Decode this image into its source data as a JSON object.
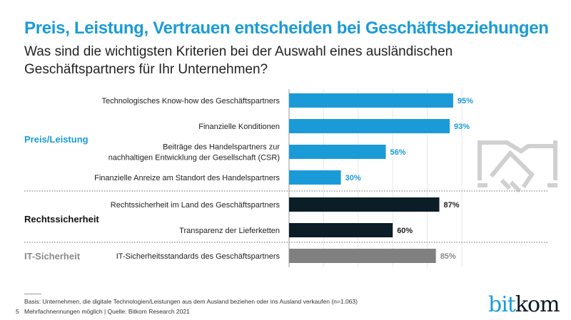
{
  "title": "Preis, Leistung, Vertrauen entscheiden bei Geschäftsbeziehungen",
  "subtitle": "Was sind die wichtigsten Kriterien bei der Auswahl eines ausländischen Geschäftspartners für Ihr Unternehmen?",
  "chart_data": {
    "type": "bar",
    "orientation": "horizontal",
    "unit": "%",
    "xlim": [
      0,
      100
    ],
    "grid": true,
    "groups": [
      {
        "name": "Preis/Leistung",
        "color": "#1a9bd7",
        "label_color": "#1a9bd7",
        "items": [
          {
            "label": [
              "Technologisches Know-how des Geschäftspartners"
            ],
            "value": 95,
            "value_label": "95%"
          },
          {
            "label": [
              "Finanzielle Konditionen"
            ],
            "value": 93,
            "value_label": "93%"
          },
          {
            "label": [
              "Beiträge des Handelspartners zur",
              "nachhaltigen Entwicklung der Gesellschaft (CSR)"
            ],
            "value": 56,
            "value_label": "56%"
          },
          {
            "label": [
              "Finanzielle Anreize am Standort des Handelspartners"
            ],
            "value": 30,
            "value_label": "30%"
          }
        ]
      },
      {
        "name": "Rechtssicherheit",
        "color": "#0b1d26",
        "label_color": "#111111",
        "items": [
          {
            "label": [
              "Rechtssicherheit im Land des Geschäftspartners"
            ],
            "value": 87,
            "value_label": "87%"
          },
          {
            "label": [
              "Transparenz der Lieferketten"
            ],
            "value": 60,
            "value_label": "60%"
          }
        ]
      },
      {
        "name": "IT-Sicherheit",
        "color": "#808080",
        "label_color": "#8a8a8a",
        "items": [
          {
            "label": [
              "IT-Sicherheitsstandards des Geschäftspartners"
            ],
            "value": 85,
            "value_label": "85%"
          }
        ]
      }
    ]
  },
  "decoration_icon": "handshake-icon",
  "footer": {
    "basis": "Basis: Unternehmen, die digitale Technologien/Leistungen aus dem Ausland beziehen oder ins Ausland verkaufen (n=1.063)",
    "note": "Mehrfachnennungen möglich | Quelle: Bitkom Research 2021",
    "page": "5"
  },
  "logo": {
    "part1": "bit",
    "part2": "kom"
  }
}
